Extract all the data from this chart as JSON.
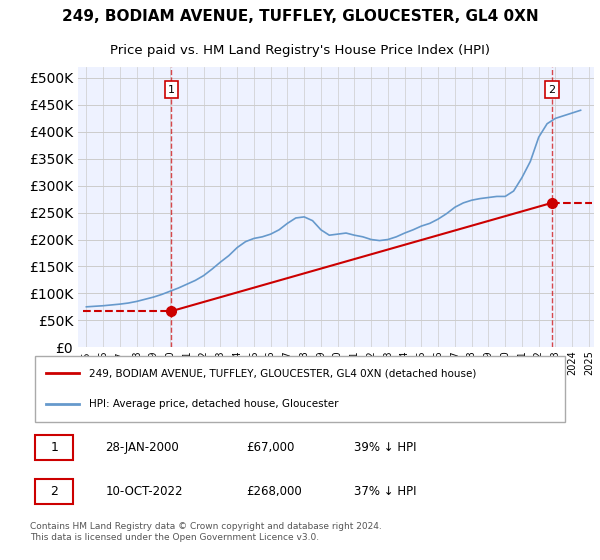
{
  "title": "249, BODIAM AVENUE, TUFFLEY, GLOUCESTER, GL4 0XN",
  "subtitle": "Price paid vs. HM Land Registry's House Price Index (HPI)",
  "background_color": "#eef2ff",
  "plot_bg_color": "#eef2ff",
  "legend_label_red": "249, BODIAM AVENUE, TUFFLEY, GLOUCESTER, GL4 0XN (detached house)",
  "legend_label_blue": "HPI: Average price, detached house, Gloucester",
  "footer": "Contains HM Land Registry data © Crown copyright and database right 2024.\nThis data is licensed under the Open Government Licence v3.0.",
  "annotation1_label": "1",
  "annotation1_date": "28-JAN-2000",
  "annotation1_price": "£67,000",
  "annotation1_hpi": "39% ↓ HPI",
  "annotation2_label": "2",
  "annotation2_date": "10-OCT-2022",
  "annotation2_price": "£268,000",
  "annotation2_hpi": "37% ↓ HPI",
  "red_color": "#cc0000",
  "blue_color": "#6699cc",
  "dashed_red_color": "#cc0000",
  "ylim": [
    0,
    520000
  ],
  "yticks": [
    0,
    50000,
    100000,
    150000,
    200000,
    250000,
    300000,
    350000,
    400000,
    450000,
    500000
  ],
  "x_start_year": 1995,
  "x_end_year": 2025,
  "hpi_years": [
    1995,
    1995.5,
    1996,
    1996.5,
    1997,
    1997.5,
    1998,
    1998.5,
    1999,
    1999.5,
    2000,
    2000.5,
    2001,
    2001.5,
    2002,
    2002.5,
    2003,
    2003.5,
    2004,
    2004.5,
    2005,
    2005.5,
    2006,
    2006.5,
    2007,
    2007.5,
    2008,
    2008.5,
    2009,
    2009.5,
    2010,
    2010.5,
    2011,
    2011.5,
    2012,
    2012.5,
    2013,
    2013.5,
    2014,
    2014.5,
    2015,
    2015.5,
    2016,
    2016.5,
    2017,
    2017.5,
    2018,
    2018.5,
    2019,
    2019.5,
    2020,
    2020.5,
    2021,
    2021.5,
    2022,
    2022.5,
    2023,
    2023.5,
    2024,
    2024.5
  ],
  "hpi_values": [
    75000,
    76000,
    77000,
    78500,
    80000,
    82000,
    85000,
    89000,
    93000,
    98000,
    104000,
    110000,
    117000,
    124000,
    133000,
    145000,
    158000,
    170000,
    185000,
    196000,
    202000,
    205000,
    210000,
    218000,
    230000,
    240000,
    242000,
    235000,
    218000,
    208000,
    210000,
    212000,
    208000,
    205000,
    200000,
    198000,
    200000,
    205000,
    212000,
    218000,
    225000,
    230000,
    238000,
    248000,
    260000,
    268000,
    273000,
    276000,
    278000,
    280000,
    280000,
    290000,
    315000,
    345000,
    390000,
    415000,
    425000,
    430000,
    435000,
    440000
  ],
  "sale1_year": 2000.08,
  "sale1_price": 67000,
  "sale2_year": 2022.78,
  "sale2_price": 268000,
  "red_line_years": [
    2000.08,
    2022.78
  ],
  "red_line_values": [
    67000,
    268000
  ]
}
